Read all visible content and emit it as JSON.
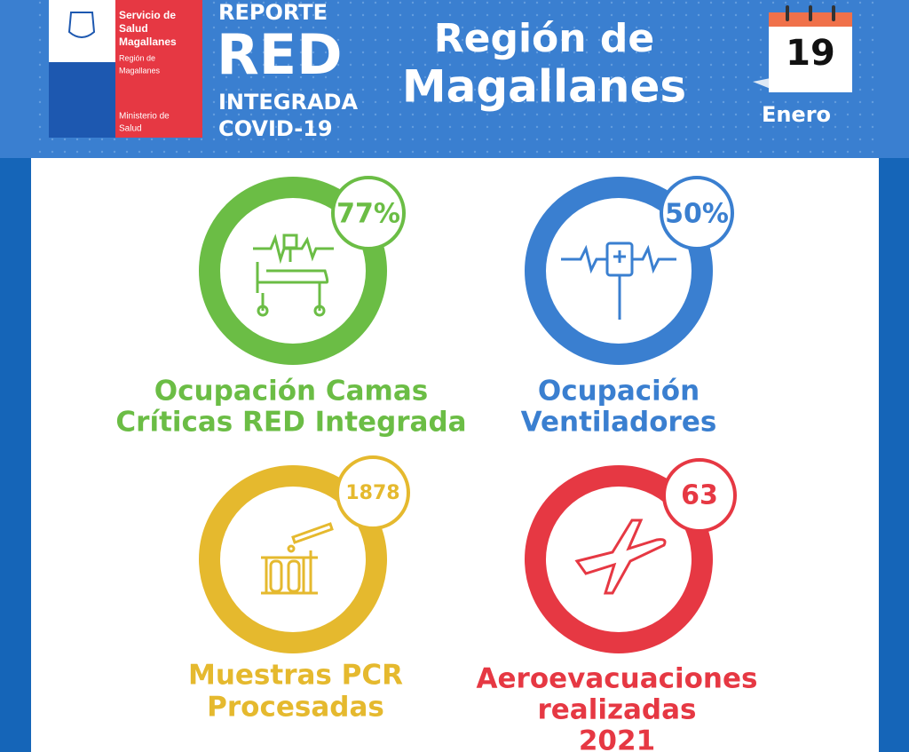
{
  "header": {
    "logo": {
      "service_lines": [
        "Servicio de",
        "Salud",
        "Magallanes"
      ],
      "region_lines": [
        "Región de",
        "Magallanes"
      ],
      "ministry_lines": [
        "Ministerio de",
        "Salud"
      ]
    },
    "report_lines": [
      "REPORTE",
      "RED",
      "INTEGRADA",
      "COVID-19"
    ],
    "region_lines": [
      "Región de",
      "Magallanes"
    ],
    "calendar": {
      "day": "19",
      "month": "Enero"
    }
  },
  "cards": [
    {
      "value": "77%",
      "title_lines": [
        "Ocupación Camas",
        "Críticas RED Integrada"
      ]
    },
    {
      "value": "50%",
      "title_lines": [
        "Ocupación",
        "Ventiladores"
      ]
    },
    {
      "value": "1878",
      "title_lines": [
        "Muestras PCR",
        "Procesadas"
      ]
    },
    {
      "value": "63",
      "title_lines": [
        "Aeroevacuaciones",
        "realizadas",
        "2021"
      ]
    }
  ]
}
